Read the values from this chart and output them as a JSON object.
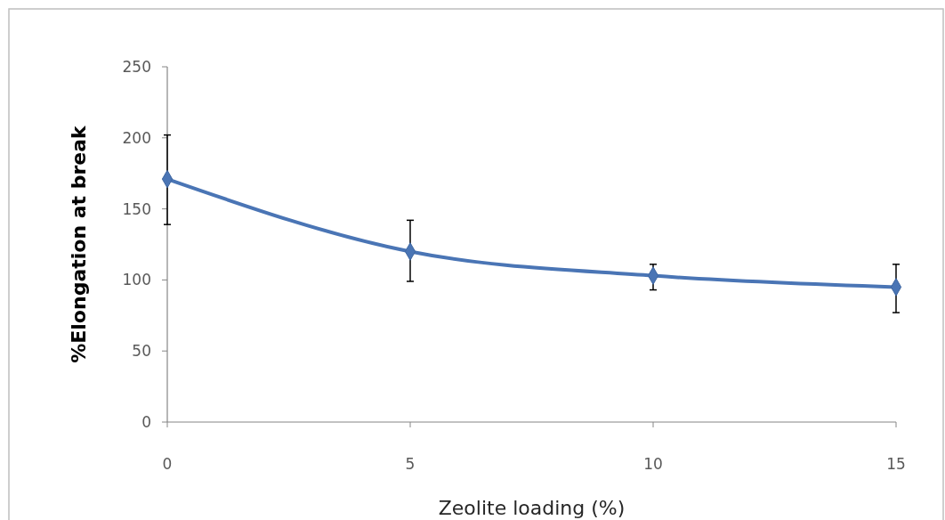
{
  "chart_data": {
    "type": "line",
    "xlabel": "Zeolite loading (%)",
    "ylabel": "%Elongation at break",
    "x": [
      0,
      5,
      10,
      15
    ],
    "series": [
      {
        "color": "#4a75b5",
        "values": [
          171,
          120,
          103,
          95
        ],
        "errors": [
          [
            139,
            202
          ],
          [
            99,
            142
          ],
          [
            93,
            111
          ],
          [
            77,
            111
          ]
        ]
      }
    ],
    "xlim": [
      0,
      15
    ],
    "xticks": [
      0,
      5,
      10,
      15
    ],
    "ylim": [
      0,
      250
    ],
    "yticks": [
      0,
      50,
      100,
      150,
      200,
      250
    ],
    "marker": "diamond",
    "line_style": "solid",
    "grid": false
  }
}
